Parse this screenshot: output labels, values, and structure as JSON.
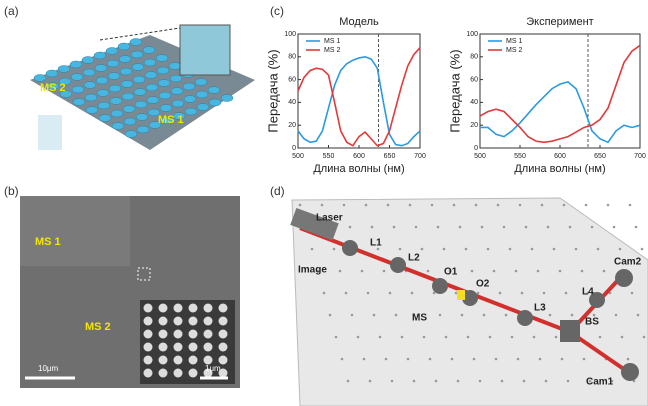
{
  "panels": {
    "a": {
      "label": "(a)",
      "texts": [
        "MS 2",
        "MS 1"
      ]
    },
    "b": {
      "label": "(b)",
      "texts": [
        "MS 1",
        "MS 2",
        "10μm",
        "1μm"
      ]
    },
    "c": {
      "label": "(c)"
    },
    "d": {
      "label": "(d)",
      "texts": [
        "Laser",
        "L1",
        "Image",
        "L2",
        "O1",
        "O2",
        "MS",
        "L3",
        "BS",
        "L4",
        "Cam2",
        "Cam1"
      ]
    }
  },
  "chart_data": [
    {
      "type": "line",
      "title": "Модель",
      "x_label": "Длина волны (нм)",
      "y_label": "Передача (%)",
      "x": [
        500,
        510,
        520,
        530,
        540,
        550,
        560,
        570,
        580,
        590,
        600,
        610,
        620,
        630,
        640,
        650,
        660,
        670,
        680,
        690,
        700
      ],
      "xlim": [
        500,
        700
      ],
      "xticks": [
        500,
        550,
        600,
        650,
        700
      ],
      "ylim": [
        0,
        100
      ],
      "yticks": [
        0,
        20,
        40,
        60,
        80,
        100
      ],
      "vline": 632,
      "series": [
        {
          "name": "MS 1",
          "color": "#2b9ae0",
          "values": [
            15,
            8,
            5,
            6,
            15,
            35,
            55,
            68,
            74,
            77,
            79,
            80,
            78,
            70,
            40,
            12,
            3,
            2,
            4,
            10,
            15
          ]
        },
        {
          "name": "MS 2",
          "color": "#e03a3a",
          "values": [
            50,
            62,
            68,
            70,
            69,
            64,
            40,
            15,
            5,
            2,
            10,
            14,
            8,
            2,
            4,
            15,
            35,
            55,
            72,
            82,
            88
          ]
        }
      ]
    },
    {
      "type": "line",
      "title": "Эксперимент",
      "x_label": "Длина волны (нм)",
      "y_label": "Передача (%)",
      "x": [
        500,
        510,
        520,
        530,
        540,
        550,
        560,
        570,
        580,
        590,
        600,
        610,
        620,
        630,
        640,
        650,
        660,
        670,
        680,
        690,
        700
      ],
      "xlim": [
        500,
        700
      ],
      "xticks": [
        500,
        550,
        600,
        650,
        700
      ],
      "ylim": [
        0,
        100
      ],
      "yticks": [
        0,
        20,
        40,
        60,
        80,
        100
      ],
      "vline": 635,
      "series": [
        {
          "name": "MS 1",
          "color": "#2b9ae0",
          "values": [
            18,
            18,
            12,
            10,
            15,
            22,
            30,
            38,
            45,
            52,
            56,
            58,
            52,
            35,
            15,
            8,
            5,
            15,
            20,
            18,
            20
          ]
        },
        {
          "name": "MS 2",
          "color": "#e03a3a",
          "values": [
            28,
            32,
            34,
            32,
            25,
            18,
            10,
            6,
            5,
            6,
            8,
            10,
            14,
            18,
            20,
            25,
            35,
            55,
            75,
            85,
            90
          ]
        }
      ]
    }
  ]
}
